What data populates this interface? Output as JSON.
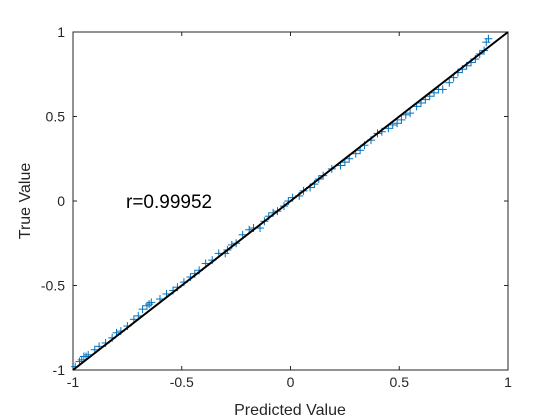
{
  "chart_data": {
    "type": "scatter",
    "title": "",
    "xlabel": "Predicted Value",
    "ylabel": "True Value",
    "xlim": [
      -1,
      1
    ],
    "ylim": [
      -1,
      1
    ],
    "xticks": [
      "-1",
      "-0.5",
      "0",
      "0.5",
      "1"
    ],
    "yticks": [
      "-1",
      "-0.5",
      "0",
      "0.5",
      "1"
    ],
    "grid": false,
    "legend": "none",
    "annotation": "r=0.99952",
    "marker": "plus",
    "marker_color": "#0072bd",
    "fit_line": {
      "x": [
        -1,
        1
      ],
      "y": [
        -1,
        1
      ],
      "color": "#000000"
    },
    "series": [
      {
        "x": [
          -0.99,
          -0.97,
          -0.96,
          -0.95,
          -0.94,
          -0.93,
          -0.9,
          -0.88,
          -0.85,
          -0.82,
          -0.8,
          -0.78,
          -0.75,
          -0.72,
          -0.7,
          -0.68,
          -0.66,
          -0.65,
          -0.64,
          -0.6,
          -0.57,
          -0.54,
          -0.52,
          -0.49,
          -0.46,
          -0.44,
          -0.42,
          -0.39,
          -0.36,
          -0.33,
          -0.3,
          -0.29,
          -0.27,
          -0.25,
          -0.22,
          -0.19,
          -0.17,
          -0.14,
          -0.12,
          -0.1,
          -0.08,
          -0.06,
          -0.03,
          -0.01,
          0.01,
          0.04,
          0.06,
          0.09,
          0.11,
          0.13,
          0.15,
          0.19,
          0.23,
          0.25,
          0.27,
          0.3,
          0.32,
          0.34,
          0.37,
          0.4,
          0.42,
          0.45,
          0.47,
          0.49,
          0.51,
          0.53,
          0.55,
          0.58,
          0.6,
          0.62,
          0.64,
          0.66,
          0.68,
          0.7,
          0.73,
          0.75,
          0.77,
          0.79,
          0.81,
          0.83,
          0.85,
          0.87,
          0.89,
          0.9,
          0.91
        ],
        "y": [
          -0.98,
          -0.95,
          -0.94,
          -0.92,
          -0.92,
          -0.91,
          -0.88,
          -0.86,
          -0.84,
          -0.81,
          -0.78,
          -0.77,
          -0.74,
          -0.7,
          -0.68,
          -0.64,
          -0.62,
          -0.61,
          -0.6,
          -0.58,
          -0.55,
          -0.53,
          -0.51,
          -0.48,
          -0.45,
          -0.43,
          -0.41,
          -0.37,
          -0.35,
          -0.31,
          -0.31,
          -0.29,
          -0.26,
          -0.25,
          -0.2,
          -0.17,
          -0.16,
          -0.16,
          -0.12,
          -0.09,
          -0.07,
          -0.06,
          -0.03,
          0.0,
          0.02,
          0.03,
          0.06,
          0.08,
          0.1,
          0.13,
          0.15,
          0.19,
          0.21,
          0.23,
          0.25,
          0.28,
          0.3,
          0.33,
          0.36,
          0.4,
          0.41,
          0.43,
          0.45,
          0.46,
          0.48,
          0.51,
          0.52,
          0.56,
          0.58,
          0.6,
          0.62,
          0.64,
          0.66,
          0.66,
          0.7,
          0.73,
          0.76,
          0.78,
          0.8,
          0.82,
          0.84,
          0.87,
          0.89,
          0.94,
          0.96
        ]
      }
    ]
  }
}
